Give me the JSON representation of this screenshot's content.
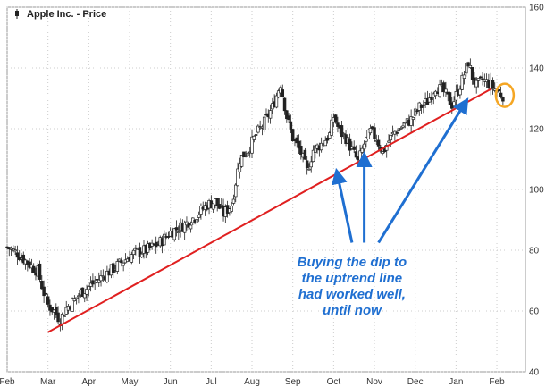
{
  "legend": {
    "label": "Apple Inc. - Price",
    "marker_icon": "candle-marker-icon"
  },
  "chart_data": {
    "type": "candlestick",
    "title": "",
    "series_name": "Apple Inc. - Price",
    "xlabel": "",
    "ylabel": "",
    "ylim": [
      40,
      160
    ],
    "yticks": [
      40,
      60,
      80,
      100,
      120,
      140,
      160
    ],
    "y_axis_side": "right",
    "x_tick_labels": [
      "Feb",
      "Mar",
      "Apr",
      "May",
      "Jun",
      "Jul",
      "Aug",
      "Sep",
      "Oct",
      "Nov",
      "Dec",
      "Jan",
      "Feb"
    ],
    "grid": true,
    "colors": {
      "candle": "#222222",
      "trendline": "#e02020",
      "arrow": "#1f6fd1",
      "circle": "#f5a623",
      "grid": "#cccccc"
    },
    "closes": [
      {
        "m": 0.0,
        "close": 81
      },
      {
        "m": 0.25,
        "close": 79
      },
      {
        "m": 0.5,
        "close": 76
      },
      {
        "m": 0.75,
        "close": 73
      },
      {
        "m": 0.9,
        "close": 66
      },
      {
        "m": 1.0,
        "close": 62
      },
      {
        "m": 1.15,
        "close": 60
      },
      {
        "m": 1.3,
        "close": 57
      },
      {
        "m": 1.45,
        "close": 61
      },
      {
        "m": 1.6,
        "close": 63
      },
      {
        "m": 1.8,
        "close": 66
      },
      {
        "m": 2.0,
        "close": 68
      },
      {
        "m": 2.3,
        "close": 71
      },
      {
        "m": 2.6,
        "close": 74
      },
      {
        "m": 2.9,
        "close": 77
      },
      {
        "m": 3.1,
        "close": 79
      },
      {
        "m": 3.4,
        "close": 80
      },
      {
        "m": 3.7,
        "close": 82
      },
      {
        "m": 4.0,
        "close": 86
      },
      {
        "m": 4.3,
        "close": 88
      },
      {
        "m": 4.6,
        "close": 91
      },
      {
        "m": 4.9,
        "close": 95
      },
      {
        "m": 5.1,
        "close": 96
      },
      {
        "m": 5.3,
        "close": 92
      },
      {
        "m": 5.5,
        "close": 95
      },
      {
        "m": 5.7,
        "close": 110
      },
      {
        "m": 5.9,
        "close": 113
      },
      {
        "m": 6.1,
        "close": 118
      },
      {
        "m": 6.3,
        "close": 122
      },
      {
        "m": 6.5,
        "close": 127
      },
      {
        "m": 6.7,
        "close": 135
      },
      {
        "m": 6.85,
        "close": 124
      },
      {
        "m": 7.0,
        "close": 117
      },
      {
        "m": 7.2,
        "close": 112
      },
      {
        "m": 7.35,
        "close": 106
      },
      {
        "m": 7.5,
        "close": 113
      },
      {
        "m": 7.7,
        "close": 115
      },
      {
        "m": 7.9,
        "close": 118
      },
      {
        "m": 8.0,
        "close": 124
      },
      {
        "m": 8.15,
        "close": 119
      },
      {
        "m": 8.3,
        "close": 117
      },
      {
        "m": 8.45,
        "close": 113
      },
      {
        "m": 8.6,
        "close": 109
      },
      {
        "m": 8.75,
        "close": 115
      },
      {
        "m": 8.9,
        "close": 119
      },
      {
        "m": 9.05,
        "close": 117
      },
      {
        "m": 9.2,
        "close": 112
      },
      {
        "m": 9.35,
        "close": 116
      },
      {
        "m": 9.5,
        "close": 119
      },
      {
        "m": 9.7,
        "close": 121
      },
      {
        "m": 9.9,
        "close": 123
      },
      {
        "m": 10.1,
        "close": 127
      },
      {
        "m": 10.3,
        "close": 129
      },
      {
        "m": 10.5,
        "close": 134
      },
      {
        "m": 10.7,
        "close": 132
      },
      {
        "m": 10.9,
        "close": 128
      },
      {
        "m": 11.0,
        "close": 131
      },
      {
        "m": 11.15,
        "close": 136
      },
      {
        "m": 11.3,
        "close": 142
      },
      {
        "m": 11.4,
        "close": 137
      },
      {
        "m": 11.5,
        "close": 134
      },
      {
        "m": 11.65,
        "close": 136
      },
      {
        "m": 11.8,
        "close": 135
      },
      {
        "m": 11.95,
        "close": 133
      },
      {
        "m": 12.15,
        "close": 131
      }
    ],
    "trendline": [
      {
        "m": 1.0,
        "price": 53
      },
      {
        "m": 11.85,
        "price": 133
      }
    ],
    "annotations": {
      "text_lines": [
        "Buying the dip to",
        "the uptrend line",
        "had worked well,",
        "until now"
      ]
    },
    "highlight_circle": {
      "m": 12.15,
      "price": 131
    }
  }
}
